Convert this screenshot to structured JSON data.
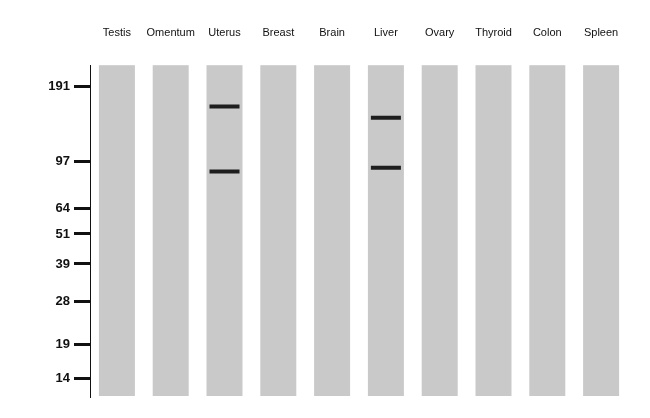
{
  "chart_data": {
    "type": "scatter",
    "categories": [
      "Testis",
      "Omentum",
      "Uterus",
      "Breast",
      "Brain",
      "Liver",
      "Ovary",
      "Thyroid",
      "Colon",
      "Spleen"
    ],
    "series": [
      {
        "values": [
          null,
          null,
          159,
          null,
          null,
          144,
          null,
          null,
          null,
          null
        ]
      },
      {
        "values": [
          null,
          null,
          89,
          null,
          null,
          92,
          null,
          null,
          null,
          null
        ]
      }
    ],
    "color": "#1e1e1e",
    "marker": "line",
    "log": "y",
    "ylim": [
      12,
      230
    ],
    "yticks": [
      191,
      97,
      64,
      51,
      39,
      28,
      19,
      14
    ],
    "grid": false
  }
}
